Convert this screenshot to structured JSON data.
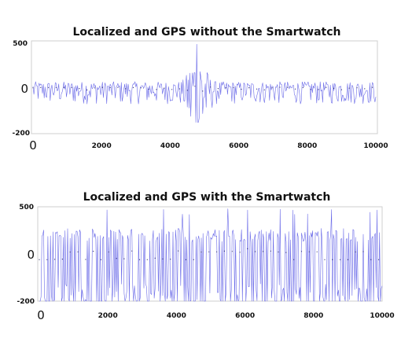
{
  "chart_data": [
    {
      "type": "line",
      "title": "Localized and GPS without the Smartwatch",
      "xlim": [
        0,
        10000
      ],
      "ylim": [
        -200,
        500
      ],
      "x_ticks": [
        0,
        2000,
        4000,
        6000,
        8000,
        10000
      ],
      "x_tick_labels": [
        "0",
        "2000",
        "4000",
        "6000",
        "8000",
        "10000"
      ],
      "y_tick_labels": [
        "500",
        "0",
        "-200"
      ],
      "grid": false,
      "series": [
        {
          "color": "#6a6ae8",
          "sample_step": 25,
          "baseline_amplitude": 70,
          "burst_center": 4800,
          "burst_width": 250,
          "burst_peak_max": 490,
          "burst_peak_min": -150
        }
      ]
    },
    {
      "type": "line",
      "title": "Localized and GPS with the Smartwatch",
      "xlim": [
        0,
        10000
      ],
      "ylim": [
        -200,
        500
      ],
      "x_ticks": [
        0,
        2000,
        4000,
        6000,
        8000,
        10000
      ],
      "x_tick_labels": [
        "0",
        "2000",
        "4000",
        "6000",
        "8000",
        "10000"
      ],
      "y_tick_labels": [
        "500",
        "0",
        "-200"
      ],
      "grid": false,
      "series": [
        {
          "color": "#6a6ae8",
          "sample_step": 25,
          "baseline_amplitude": 280,
          "peak_max": 500,
          "peak_min": -200
        }
      ]
    }
  ]
}
